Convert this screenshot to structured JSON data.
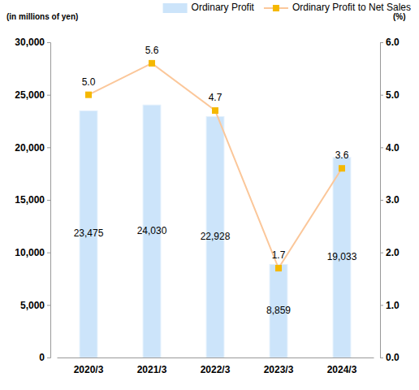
{
  "chart_data": {
    "type": "bar",
    "y_label": "(in millions of yen)",
    "y2_label": "(%)",
    "categories": [
      "2020/3",
      "2021/3",
      "2022/3",
      "2023/3",
      "2024/3"
    ],
    "series": [
      {
        "name": "Ordinary Profit",
        "type": "bar",
        "color": "#cce4fa",
        "values": [
          23475,
          24030,
          22928,
          8859,
          19033
        ],
        "value_labels": [
          "23,475",
          "24,030",
          "22,928",
          "8,859",
          "19,033"
        ]
      },
      {
        "name": "Ordinary Profit to Net Sales",
        "type": "line",
        "color": "#fbc79a",
        "marker": "square",
        "axis": "y2",
        "values": [
          5.0,
          5.6,
          4.7,
          1.7,
          3.6
        ],
        "value_labels": [
          "5.0",
          "5.6",
          "4.7",
          "1.7",
          "3.6"
        ]
      }
    ],
    "ylim": [
      0,
      30000
    ],
    "yticks": [
      0,
      {
        "value": 5000,
        "label": "5,000"
      },
      {
        "value": 10000,
        "label": "10,000"
      },
      {
        "value": 15000,
        "label": "15,000"
      },
      {
        "value": 20000,
        "label": "20,000"
      },
      {
        "value": 25000,
        "label": "25,000"
      },
      {
        "value": 30000,
        "label": "30,000"
      }
    ],
    "y2lim": [
      0,
      6
    ],
    "y2ticks": [
      {
        "value": 0,
        "label": "0.0"
      },
      {
        "value": 1,
        "label": "1.0"
      },
      {
        "value": 2,
        "label": "2.0"
      },
      {
        "value": 3,
        "label": "3.0"
      },
      {
        "value": 4,
        "label": "4.0"
      },
      {
        "value": 5,
        "label": "5.0"
      },
      {
        "value": 6,
        "label": "6.0"
      }
    ],
    "data_labels": true,
    "legend": "top",
    "grid": false
  }
}
